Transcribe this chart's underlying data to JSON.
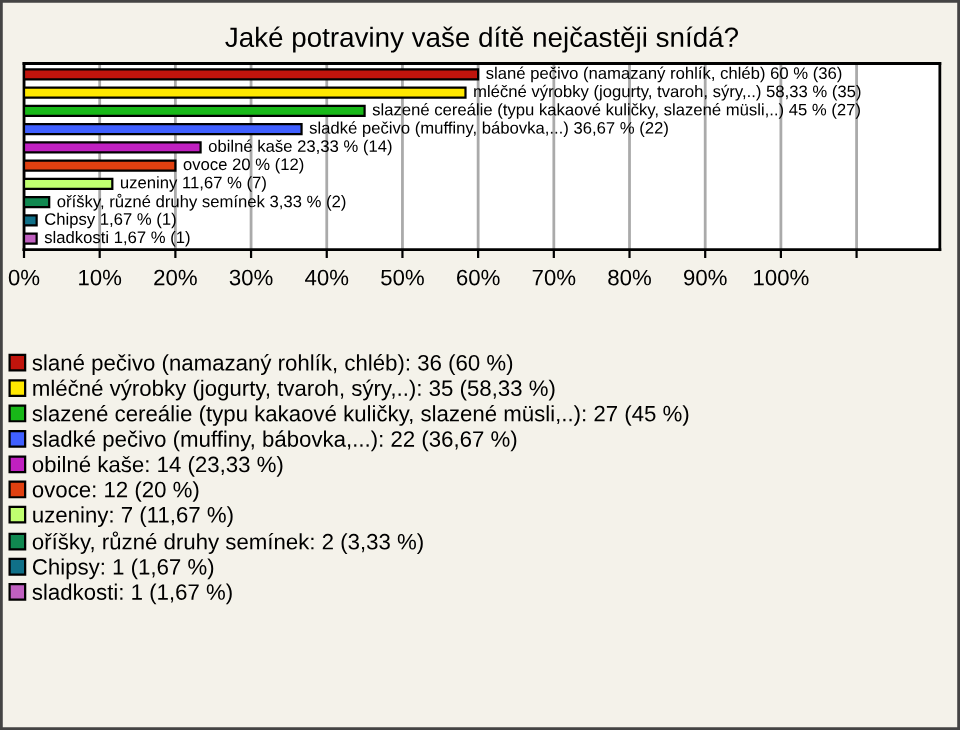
{
  "chart_data": {
    "type": "bar",
    "orientation": "horizontal",
    "title": "Jaké potraviny vaše dítě nejčastěji snídá?",
    "categories": [
      null,
      null,
      null,
      null,
      null,
      null,
      null,
      null,
      null,
      null
    ],
    "series": [
      {
        "name": "slané pečivo (namazaný rohlík, chléb): 36 (60 %)",
        "color": "#c0140c",
        "values": [
          60,
          null,
          null,
          null,
          null,
          null,
          null,
          null,
          null,
          null
        ],
        "value_labels": [
          "slané pečivo (namazaný rohlík, chléb) 60 % (36)",
          null,
          null,
          null,
          null,
          null,
          null,
          null,
          null,
          null
        ]
      },
      {
        "name": "mléčné výrobky (jogurty, tvaroh, sýry,..): 35 (58,33 %)",
        "color": "#ffe800",
        "values": [
          null,
          58.33,
          null,
          null,
          null,
          null,
          null,
          null,
          null,
          null
        ],
        "value_labels": [
          null,
          "mléčné výrobky (jogurty, tvaroh, sýry,..) 58,33 % (35)",
          null,
          null,
          null,
          null,
          null,
          null,
          null,
          null
        ]
      },
      {
        "name": "slazené cereálie (typu kakaové kuličky, slazené müsli,..): 27 (45 %)",
        "color": "#18b818",
        "values": [
          null,
          null,
          45,
          null,
          null,
          null,
          null,
          null,
          null,
          null
        ],
        "value_labels": [
          null,
          null,
          "slazené cereálie (typu kakaové kuličky, slazené müsli,..) 45 % (27)",
          null,
          null,
          null,
          null,
          null,
          null,
          null
        ]
      },
      {
        "name": "sladké pečivo (muffiny, bábovka,...): 22 (36,67 %)",
        "color": "#4060ff",
        "values": [
          null,
          null,
          null,
          36.67,
          null,
          null,
          null,
          null,
          null,
          null
        ],
        "value_labels": [
          null,
          null,
          null,
          "sladké pečivo (muffiny, bábovka,...) 36,67 % (22)",
          null,
          null,
          null,
          null,
          null,
          null
        ]
      },
      {
        "name": "obilné kaše: 14 (23,33 %)",
        "color": "#c020c0",
        "values": [
          null,
          null,
          null,
          null,
          23.33,
          null,
          null,
          null,
          null,
          null
        ],
        "value_labels": [
          null,
          null,
          null,
          null,
          "obilné kaše 23,33 % (14)",
          null,
          null,
          null,
          null,
          null
        ]
      },
      {
        "name": "ovoce: 12 (20 %)",
        "color": "#e04010",
        "values": [
          null,
          null,
          null,
          null,
          null,
          20,
          null,
          null,
          null,
          null
        ],
        "value_labels": [
          null,
          null,
          null,
          null,
          null,
          "ovoce 20 % (12)",
          null,
          null,
          null,
          null
        ]
      },
      {
        "name": "uzeniny: 7 (11,67 %)",
        "color": "#c0ff70",
        "values": [
          null,
          null,
          null,
          null,
          null,
          null,
          11.67,
          null,
          null,
          null
        ],
        "value_labels": [
          null,
          null,
          null,
          null,
          null,
          null,
          "uzeniny 11,67 % (7)",
          null,
          null,
          null
        ]
      },
      {
        "name": "oříšky, různé druhy semínek: 2 (3,33 %)",
        "color": "#108850",
        "values": [
          null,
          null,
          null,
          null,
          null,
          null,
          null,
          3.33,
          null,
          null
        ],
        "value_labels": [
          null,
          null,
          null,
          null,
          null,
          null,
          null,
          "oříšky, různé druhy semínek 3,33 % (2)",
          null,
          null
        ]
      },
      {
        "name": "Chipsy: 1 (1,67 %)",
        "color": "#107088",
        "values": [
          null,
          null,
          null,
          null,
          null,
          null,
          null,
          null,
          1.67,
          null
        ],
        "value_labels": [
          null,
          null,
          null,
          null,
          null,
          null,
          null,
          null,
          "Chipsy 1,67 % (1)",
          null
        ]
      },
      {
        "name": "sladkosti: 1 (1,67 %)",
        "color": "#c060c0",
        "values": [
          null,
          null,
          null,
          null,
          null,
          null,
          null,
          null,
          null,
          1.67
        ],
        "value_labels": [
          null,
          null,
          null,
          null,
          null,
          null,
          null,
          null,
          null,
          "sladkosti 1,67 % (1)"
        ]
      }
    ],
    "xlim": [
      0,
      121
    ],
    "xticks": [
      {
        "value": 0,
        "label": "0%"
      },
      {
        "value": 10,
        "label": "10%"
      },
      {
        "value": 20,
        "label": "20%"
      },
      {
        "value": 30,
        "label": "30%"
      },
      {
        "value": 40,
        "label": "40%"
      },
      {
        "value": 50,
        "label": "50%"
      },
      {
        "value": 60,
        "label": "60%"
      },
      {
        "value": 70,
        "label": "70%"
      },
      {
        "value": 80,
        "label": "80%"
      },
      {
        "value": 90,
        "label": "90%"
      },
      {
        "value": 100,
        "label": "100%"
      },
      {
        "value": 110,
        "label": null
      }
    ],
    "grid": "x",
    "legend": "bottom",
    "tick_labels": "x"
  }
}
